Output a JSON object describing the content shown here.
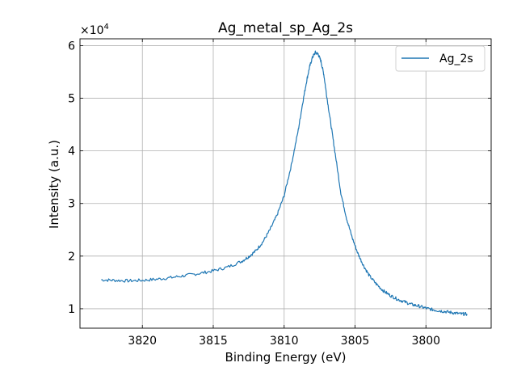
{
  "chart_data": {
    "type": "line",
    "title": "Ag_metal_sp_Ag_2s",
    "xlabel": "Binding Energy (eV)",
    "ylabel": "Intensity (a.u.)",
    "y_offset_label": "×10",
    "y_offset_exponent": "4",
    "xlim": [
      3824.4,
      3795.4
    ],
    "x_reversed": true,
    "ylim": [
      0.63,
      6.13
    ],
    "y_scale_factor": 10000,
    "x_ticks": [
      3820,
      3815,
      3810,
      3805,
      3800
    ],
    "x_tick_labels": [
      "3820",
      "3815",
      "3810",
      "3805",
      "3800"
    ],
    "y_ticks": [
      1,
      2,
      3,
      4,
      5,
      6
    ],
    "y_tick_labels": [
      "1",
      "2",
      "3",
      "4",
      "5",
      "6"
    ],
    "grid": true,
    "legend_position": "top-right",
    "color": "#1f77b4",
    "series": [
      {
        "name": "Ag_2s",
        "x": [
          3822.9,
          3822.0,
          3821.0,
          3820.0,
          3819.0,
          3818.0,
          3817.0,
          3816.0,
          3815.0,
          3814.0,
          3813.0,
          3812.5,
          3812.0,
          3811.5,
          3811.0,
          3810.5,
          3810.0,
          3809.5,
          3809.0,
          3808.7,
          3808.4,
          3808.2,
          3808.0,
          3807.8,
          3807.6,
          3807.4,
          3807.2,
          3807.0,
          3806.7,
          3806.4,
          3806.0,
          3805.6,
          3805.2,
          3804.8,
          3804.4,
          3804.0,
          3803.5,
          3803.0,
          3802.5,
          3802.0,
          3801.5,
          3801.0,
          3800.5,
          3800.0,
          3799.5,
          3799.0,
          3798.5,
          3798.0,
          3797.5,
          3797.1
        ],
        "y": [
          1.55,
          1.54,
          1.53,
          1.54,
          1.56,
          1.59,
          1.63,
          1.67,
          1.72,
          1.79,
          1.9,
          1.99,
          2.1,
          2.27,
          2.5,
          2.78,
          3.15,
          3.72,
          4.4,
          4.9,
          5.35,
          5.6,
          5.78,
          5.87,
          5.84,
          5.7,
          5.45,
          5.05,
          4.5,
          3.95,
          3.2,
          2.72,
          2.35,
          2.05,
          1.82,
          1.63,
          1.47,
          1.34,
          1.25,
          1.18,
          1.13,
          1.08,
          1.05,
          1.01,
          0.98,
          0.96,
          0.94,
          0.92,
          0.9,
          0.9
        ]
      }
    ]
  }
}
